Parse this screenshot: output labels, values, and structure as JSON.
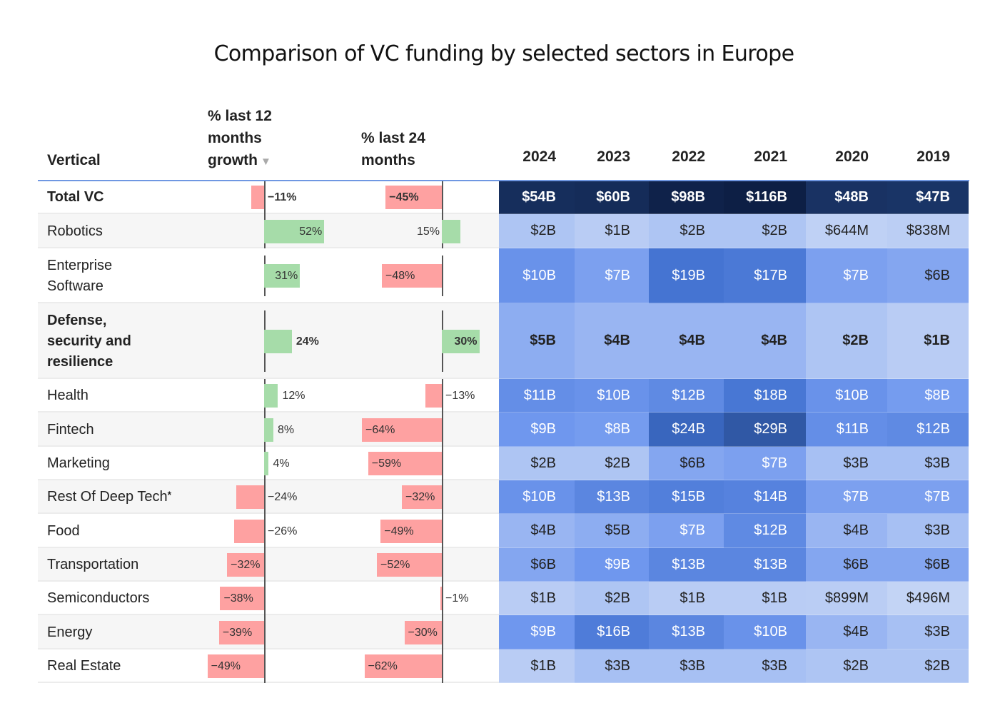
{
  "title": "Comparison of VC funding by selected sectors in Europe",
  "chart_data": {
    "type": "table",
    "title": "Comparison of VC funding by selected sectors in Europe",
    "columns": {
      "vertical": "Vertical",
      "growth12": "% last 12 months growth",
      "growth12_lines": [
        "% last 12",
        "months",
        "growth"
      ],
      "growth24": "% last 24 months",
      "growth24_lines": [
        "% last 24",
        "months"
      ],
      "years": [
        "2024",
        "2023",
        "2022",
        "2021",
        "2020",
        "2019"
      ]
    },
    "sort": {
      "column": "growth12",
      "direction": "descending",
      "icon": "sort-down-triangle-icon"
    },
    "colors": {
      "positive_bar": "#a6dca9",
      "negative_bar": "#fea1a1",
      "heat_low": "#c3d3f4",
      "heat_high": "#0d1f45",
      "header_rule": "#6f97e2"
    },
    "rows": [
      {
        "label": "Total VC",
        "bold": true,
        "growth12": -11,
        "growth12_label": "−11%",
        "growth24": -45,
        "growth24_label": "−45%",
        "values": [
          54000,
          60000,
          98000,
          116000,
          48000,
          47000
        ],
        "labels": [
          "$54B",
          "$60B",
          "$98B",
          "$116B",
          "$48B",
          "$47B"
        ]
      },
      {
        "label": "Robotics",
        "bold": false,
        "growth12": 52,
        "growth12_label": "52%",
        "growth24": 15,
        "growth24_label": "15%",
        "values": [
          2000,
          1000,
          2000,
          2000,
          644,
          838
        ],
        "labels": [
          "$2B",
          "$1B",
          "$2B",
          "$2B",
          "$644M",
          "$838M"
        ]
      },
      {
        "label": "Enterprise Software",
        "label_lines": [
          "Enterprise",
          "Software"
        ],
        "bold": false,
        "growth12": 31,
        "growth12_label": "31%",
        "growth24": -48,
        "growth24_label": "−48%",
        "values": [
          10000,
          7000,
          19000,
          17000,
          7000,
          6000
        ],
        "labels": [
          "$10B",
          "$7B",
          "$19B",
          "$17B",
          "$7B",
          "$6B"
        ]
      },
      {
        "label": "Defense, security and resilience",
        "label_lines": [
          "Defense,",
          "security and",
          "resilience"
        ],
        "bold": true,
        "growth12": 24,
        "growth12_label": "24%",
        "growth24": 30,
        "growth24_label": "30%",
        "values": [
          5000,
          4000,
          4000,
          4000,
          2000,
          1000
        ],
        "labels": [
          "$5B",
          "$4B",
          "$4B",
          "$4B",
          "$2B",
          "$1B"
        ]
      },
      {
        "label": "Health",
        "bold": false,
        "growth12": 12,
        "growth12_label": "12%",
        "growth24": -13,
        "growth24_label": "−13%",
        "values": [
          11000,
          10000,
          12000,
          18000,
          10000,
          8000
        ],
        "labels": [
          "$11B",
          "$10B",
          "$12B",
          "$18B",
          "$10B",
          "$8B"
        ]
      },
      {
        "label": "Fintech",
        "bold": false,
        "growth12": 8,
        "growth12_label": "8%",
        "growth24": -64,
        "growth24_label": "−64%",
        "values": [
          9000,
          8000,
          24000,
          29000,
          11000,
          12000
        ],
        "labels": [
          "$9B",
          "$8B",
          "$24B",
          "$29B",
          "$11B",
          "$12B"
        ]
      },
      {
        "label": "Marketing",
        "bold": false,
        "growth12": 4,
        "growth12_label": "4%",
        "growth24": -59,
        "growth24_label": "−59%",
        "values": [
          2000,
          2000,
          6000,
          7000,
          3000,
          3000
        ],
        "labels": [
          "$2B",
          "$2B",
          "$6B",
          "$7B",
          "$3B",
          "$3B"
        ]
      },
      {
        "label": "Rest Of Deep Tech",
        "footnote": "*",
        "bold": false,
        "growth12": -24,
        "growth12_label": "−24%",
        "growth24": -32,
        "growth24_label": "−32%",
        "values": [
          10000,
          13000,
          15000,
          14000,
          7000,
          7000
        ],
        "labels": [
          "$10B",
          "$13B",
          "$15B",
          "$14B",
          "$7B",
          "$7B"
        ]
      },
      {
        "label": "Food",
        "bold": false,
        "growth12": -26,
        "growth12_label": "−26%",
        "growth24": -49,
        "growth24_label": "−49%",
        "values": [
          4000,
          5000,
          7000,
          12000,
          4000,
          3000
        ],
        "labels": [
          "$4B",
          "$5B",
          "$7B",
          "$12B",
          "$4B",
          "$3B"
        ]
      },
      {
        "label": "Transportation",
        "bold": false,
        "growth12": -32,
        "growth12_label": "−32%",
        "growth24": -52,
        "growth24_label": "−52%",
        "values": [
          6000,
          9000,
          13000,
          13000,
          6000,
          6000
        ],
        "labels": [
          "$6B",
          "$9B",
          "$13B",
          "$13B",
          "$6B",
          "$6B"
        ]
      },
      {
        "label": "Semiconductors",
        "bold": false,
        "growth12": -38,
        "growth12_label": "−38%",
        "growth24": -1,
        "growth24_label": "−1%",
        "values": [
          1000,
          2000,
          1000,
          1000,
          899,
          496
        ],
        "labels": [
          "$1B",
          "$2B",
          "$1B",
          "$1B",
          "$899M",
          "$496M"
        ]
      },
      {
        "label": "Energy",
        "bold": false,
        "growth12": -39,
        "growth12_label": "−39%",
        "growth24": -30,
        "growth24_label": "−30%",
        "values": [
          9000,
          16000,
          13000,
          10000,
          4000,
          3000
        ],
        "labels": [
          "$9B",
          "$16B",
          "$13B",
          "$10B",
          "$4B",
          "$3B"
        ]
      },
      {
        "label": "Real Estate",
        "bold": false,
        "growth12": -49,
        "growth12_label": "−49%",
        "growth24": -62,
        "growth24_label": "−62%",
        "values": [
          1000,
          3000,
          3000,
          3000,
          2000,
          2000
        ],
        "labels": [
          "$1B",
          "$3B",
          "$3B",
          "$3B",
          "$2B",
          "$2B"
        ]
      }
    ]
  }
}
